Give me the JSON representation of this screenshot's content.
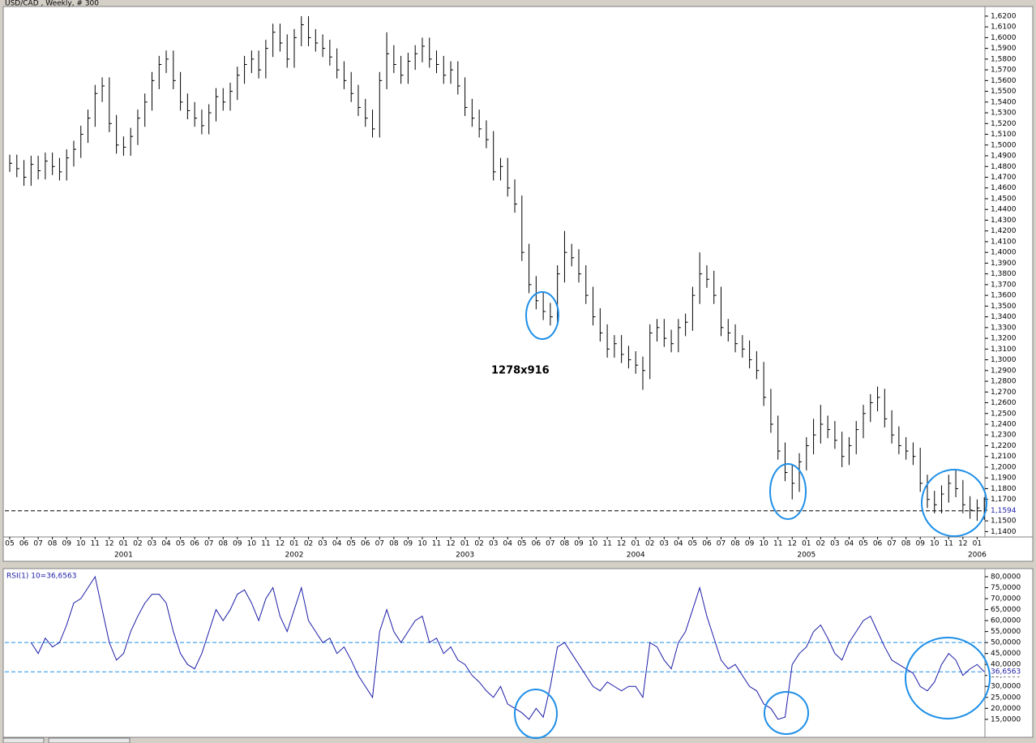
{
  "chart_data": [
    {
      "type": "ohlc",
      "title": "USD/CAD , Weekly, # 300",
      "annotation": "1278x916",
      "categories": [
        "05",
        null,
        "06",
        null,
        "07",
        null,
        "08",
        null,
        "09",
        null,
        "10",
        null,
        "11",
        null,
        "12",
        null,
        "01",
        null,
        "02",
        null,
        "03",
        null,
        "04",
        null,
        "05",
        null,
        "06",
        null,
        "07",
        null,
        "08",
        null,
        "09",
        null,
        "10",
        null,
        "11",
        null,
        "12",
        null,
        "01",
        null,
        "02",
        null,
        "03",
        null,
        "04",
        null,
        "05",
        null,
        "06",
        null,
        "07",
        null,
        "08",
        null,
        "09",
        null,
        "10",
        null,
        "11",
        null,
        "12",
        null,
        "01",
        null,
        "02",
        null,
        "03",
        null,
        "04",
        null,
        "05",
        null,
        "06",
        null,
        "07",
        null,
        "08",
        null,
        "09",
        null,
        "10",
        null,
        "11",
        null,
        "12",
        null,
        "01",
        null,
        "02",
        null,
        "03",
        null,
        "04",
        null,
        "05",
        null,
        "06",
        null,
        "07",
        null,
        "08",
        null,
        "09",
        null,
        "10",
        null,
        "11",
        null,
        "12",
        null,
        "01",
        null,
        "02",
        null,
        "03",
        null,
        "04",
        null,
        "05",
        null,
        "06",
        null,
        "07",
        null,
        "08",
        null,
        "09",
        null,
        "10",
        null,
        "11",
        null,
        "12",
        null,
        "01",
        null
      ],
      "years": [
        "2001",
        "2002",
        "2003",
        "2004",
        "2005",
        "2006"
      ],
      "high": [
        1.491,
        1.491,
        1.486,
        1.49,
        1.49,
        1.493,
        1.493,
        1.488,
        1.496,
        1.504,
        1.518,
        1.533,
        1.556,
        1.563,
        1.563,
        1.528,
        1.508,
        1.516,
        1.533,
        1.548,
        1.568,
        1.583,
        1.588,
        1.588,
        1.568,
        1.548,
        1.54,
        1.533,
        1.538,
        1.553,
        1.553,
        1.558,
        1.573,
        1.583,
        1.588,
        1.588,
        1.598,
        1.613,
        1.613,
        1.603,
        1.608,
        1.62,
        1.62,
        1.608,
        1.603,
        1.598,
        1.59,
        1.578,
        1.568,
        1.556,
        1.543,
        1.533,
        1.568,
        1.605,
        1.593,
        1.583,
        1.586,
        1.593,
        1.6,
        1.6,
        1.588,
        1.583,
        1.578,
        1.578,
        1.563,
        1.543,
        1.533,
        1.523,
        1.513,
        1.488,
        1.488,
        1.468,
        1.453,
        1.408,
        1.378,
        1.363,
        1.353,
        1.388,
        1.42,
        1.408,
        1.403,
        1.388,
        1.368,
        1.348,
        1.333,
        1.323,
        1.323,
        1.313,
        1.308,
        1.303,
        1.333,
        1.338,
        1.338,
        1.328,
        1.338,
        1.343,
        1.368,
        1.4,
        1.388,
        1.383,
        1.368,
        1.338,
        1.333,
        1.323,
        1.318,
        1.308,
        1.298,
        1.273,
        1.248,
        1.223,
        1.203,
        1.213,
        1.228,
        1.245,
        1.258,
        1.248,
        1.243,
        1.233,
        1.228,
        1.243,
        1.258,
        1.268,
        1.275,
        1.273,
        1.253,
        1.238,
        1.228,
        1.223,
        1.218,
        1.193,
        1.178,
        1.183,
        1.193,
        1.198,
        1.188,
        1.173,
        1.17,
        1.172
      ],
      "low": [
        1.475,
        1.47,
        1.462,
        1.462,
        1.468,
        1.468,
        1.472,
        1.467,
        1.467,
        1.48,
        1.488,
        1.502,
        1.517,
        1.54,
        1.512,
        1.492,
        1.49,
        1.49,
        1.5,
        1.517,
        1.532,
        1.552,
        1.567,
        1.552,
        1.532,
        1.524,
        1.517,
        1.51,
        1.51,
        1.522,
        1.532,
        1.532,
        1.542,
        1.557,
        1.567,
        1.562,
        1.562,
        1.582,
        1.587,
        1.572,
        1.572,
        1.592,
        1.592,
        1.587,
        1.582,
        1.574,
        1.562,
        1.552,
        1.54,
        1.527,
        1.517,
        1.507,
        1.507,
        1.552,
        1.567,
        1.557,
        1.557,
        1.57,
        1.577,
        1.572,
        1.567,
        1.557,
        1.557,
        1.547,
        1.527,
        1.517,
        1.507,
        1.497,
        1.467,
        1.467,
        1.452,
        1.437,
        1.392,
        1.362,
        1.347,
        1.337,
        1.332,
        1.332,
        1.372,
        1.387,
        1.372,
        1.352,
        1.332,
        1.317,
        1.302,
        1.302,
        1.297,
        1.292,
        1.287,
        1.272,
        1.282,
        1.317,
        1.312,
        1.307,
        1.307,
        1.322,
        1.327,
        1.352,
        1.367,
        1.352,
        1.322,
        1.317,
        1.307,
        1.302,
        1.292,
        1.282,
        1.257,
        1.232,
        1.207,
        1.187,
        1.17,
        1.177,
        1.197,
        1.212,
        1.222,
        1.227,
        1.217,
        1.2,
        1.202,
        1.212,
        1.227,
        1.242,
        1.252,
        1.237,
        1.222,
        1.212,
        1.207,
        1.202,
        1.177,
        1.162,
        1.157,
        1.157,
        1.167,
        1.172,
        1.157,
        1.152,
        1.15,
        1.151
      ],
      "close": [
        1.483,
        1.478,
        1.47,
        1.482,
        1.476,
        1.485,
        1.48,
        1.475,
        1.488,
        1.496,
        1.51,
        1.525,
        1.548,
        1.555,
        1.52,
        1.5,
        1.498,
        1.508,
        1.525,
        1.54,
        1.56,
        1.575,
        1.58,
        1.56,
        1.54,
        1.532,
        1.525,
        1.518,
        1.53,
        1.545,
        1.54,
        1.55,
        1.565,
        1.575,
        1.58,
        1.57,
        1.59,
        1.605,
        1.595,
        1.58,
        1.6,
        1.612,
        1.6,
        1.595,
        1.59,
        1.582,
        1.57,
        1.56,
        1.548,
        1.535,
        1.525,
        1.515,
        1.56,
        1.585,
        1.575,
        1.565,
        1.578,
        1.585,
        1.592,
        1.58,
        1.575,
        1.565,
        1.57,
        1.555,
        1.535,
        1.525,
        1.515,
        1.505,
        1.475,
        1.48,
        1.46,
        1.445,
        1.4,
        1.37,
        1.355,
        1.345,
        1.34,
        1.38,
        1.4,
        1.395,
        1.38,
        1.36,
        1.34,
        1.325,
        1.31,
        1.315,
        1.305,
        1.3,
        1.295,
        1.29,
        1.325,
        1.33,
        1.32,
        1.315,
        1.33,
        1.335,
        1.36,
        1.38,
        1.375,
        1.36,
        1.33,
        1.325,
        1.315,
        1.31,
        1.3,
        1.29,
        1.265,
        1.24,
        1.215,
        1.195,
        1.185,
        1.205,
        1.22,
        1.23,
        1.24,
        1.235,
        1.225,
        1.21,
        1.22,
        1.235,
        1.25,
        1.26,
        1.265,
        1.245,
        1.23,
        1.22,
        1.215,
        1.21,
        1.185,
        1.17,
        1.165,
        1.175,
        1.185,
        1.18,
        1.165,
        1.16,
        1.162,
        1.1594
      ],
      "color": "#000000",
      "last_value": {
        "value": 1.1594,
        "label": "1,1594"
      },
      "ylim": [
        1.135,
        1.629
      ],
      "yticks": [
        {
          "value": 1.14,
          "label": "1,1400"
        },
        {
          "value": 1.15,
          "label": "1,1500"
        },
        {
          "value": 1.16,
          "label": "1,1600"
        },
        {
          "value": 1.17,
          "label": "1,1700"
        },
        {
          "value": 1.18,
          "label": "1,1800"
        },
        {
          "value": 1.19,
          "label": "1,1900"
        },
        {
          "value": 1.2,
          "label": "1,2000"
        },
        {
          "value": 1.21,
          "label": "1,2100"
        },
        {
          "value": 1.22,
          "label": "1,2200"
        },
        {
          "value": 1.23,
          "label": "1,2300"
        },
        {
          "value": 1.24,
          "label": "1,2400"
        },
        {
          "value": 1.25,
          "label": "1,2500"
        },
        {
          "value": 1.26,
          "label": "1,2600"
        },
        {
          "value": 1.27,
          "label": "1,2700"
        },
        {
          "value": 1.28,
          "label": "1,2800"
        },
        {
          "value": 1.29,
          "label": "1,2900"
        },
        {
          "value": 1.3,
          "label": "1,3000"
        },
        {
          "value": 1.31,
          "label": "1,3100"
        },
        {
          "value": 1.32,
          "label": "1,3200"
        },
        {
          "value": 1.33,
          "label": "1,3300"
        },
        {
          "value": 1.34,
          "label": "1,3400"
        },
        {
          "value": 1.35,
          "label": "1,3500"
        },
        {
          "value": 1.36,
          "label": "1,3600"
        },
        {
          "value": 1.37,
          "label": "1,3700"
        },
        {
          "value": 1.38,
          "label": "1,3800"
        },
        {
          "value": 1.39,
          "label": "1,3900"
        },
        {
          "value": 1.4,
          "label": "1,4000"
        },
        {
          "value": 1.41,
          "label": "1,4100"
        },
        {
          "value": 1.42,
          "label": "1,4200"
        },
        {
          "value": 1.43,
          "label": "1,4300"
        },
        {
          "value": 1.44,
          "label": "1,4400"
        },
        {
          "value": 1.45,
          "label": "1,4500"
        },
        {
          "value": 1.46,
          "label": "1,4600"
        },
        {
          "value": 1.47,
          "label": "1,4700"
        },
        {
          "value": 1.48,
          "label": "1,4800"
        },
        {
          "value": 1.49,
          "label": "1,4900"
        },
        {
          "value": 1.5,
          "label": "1,5000"
        },
        {
          "value": 1.51,
          "label": "1,5100"
        },
        {
          "value": 1.52,
          "label": "1,5200"
        },
        {
          "value": 1.53,
          "label": "1,5300"
        },
        {
          "value": 1.54,
          "label": "1,5400"
        },
        {
          "value": 1.55,
          "label": "1,5500"
        },
        {
          "value": 1.56,
          "label": "1,5600"
        },
        {
          "value": 1.57,
          "label": "1,5700"
        },
        {
          "value": 1.58,
          "label": "1,5800"
        },
        {
          "value": 1.59,
          "label": "1,5900"
        },
        {
          "value": 1.6,
          "label": "1,6000"
        },
        {
          "value": 1.61,
          "label": "1,6100"
        },
        {
          "value": 1.62,
          "label": "1,6200"
        }
      ]
    },
    {
      "type": "line",
      "title": "RSI(1) 10=36,6563",
      "color": "#1c1ca8",
      "values": [
        null,
        null,
        null,
        50,
        45,
        52,
        48,
        50,
        58,
        68,
        70,
        75,
        80,
        65,
        50,
        42,
        45,
        55,
        62,
        68,
        72,
        72,
        68,
        55,
        45,
        40,
        38,
        45,
        55,
        65,
        60,
        65,
        72,
        74,
        68,
        60,
        70,
        75,
        62,
        55,
        65,
        75,
        60,
        55,
        50,
        52,
        45,
        48,
        42,
        35,
        30,
        25,
        55,
        65,
        55,
        50,
        55,
        60,
        62,
        50,
        52,
        45,
        48,
        42,
        40,
        35,
        32,
        28,
        25,
        30,
        22,
        20,
        18,
        15,
        20,
        16,
        30,
        48,
        50,
        45,
        40,
        35,
        30,
        28,
        32,
        30,
        28,
        30,
        30,
        25,
        50,
        48,
        42,
        38,
        50,
        55,
        65,
        75,
        62,
        52,
        42,
        38,
        40,
        35,
        30,
        28,
        22,
        20,
        15,
        16,
        40,
        45,
        48,
        55,
        58,
        52,
        45,
        42,
        50,
        55,
        60,
        62,
        55,
        48,
        42,
        40,
        38,
        36,
        30,
        28,
        32,
        40,
        45,
        42,
        35,
        38,
        40,
        36.6563
      ],
      "reference_line": 50,
      "last_value": {
        "value": 36.6563,
        "label": "36,6563"
      },
      "ylim": [
        6.8,
        83.7
      ],
      "yticks": [
        {
          "value": 15,
          "label": "15,0000"
        },
        {
          "value": 20,
          "label": "20,0000"
        },
        {
          "value": 25,
          "label": "25,0000"
        },
        {
          "value": 30,
          "label": "30,0000"
        },
        {
          "value": 35,
          "label": "35,0000"
        },
        {
          "value": 40,
          "label": "40,0000"
        },
        {
          "value": 45,
          "label": "45,0000"
        },
        {
          "value": 50,
          "label": "50,0000"
        },
        {
          "value": 55,
          "label": "55,0000"
        },
        {
          "value": 60,
          "label": "60,0000"
        },
        {
          "value": 65,
          "label": "65,0000"
        },
        {
          "value": 70,
          "label": "70,0000"
        },
        {
          "value": 75,
          "label": "75,0000"
        },
        {
          "value": 80,
          "label": "80,0000"
        }
      ]
    }
  ]
}
